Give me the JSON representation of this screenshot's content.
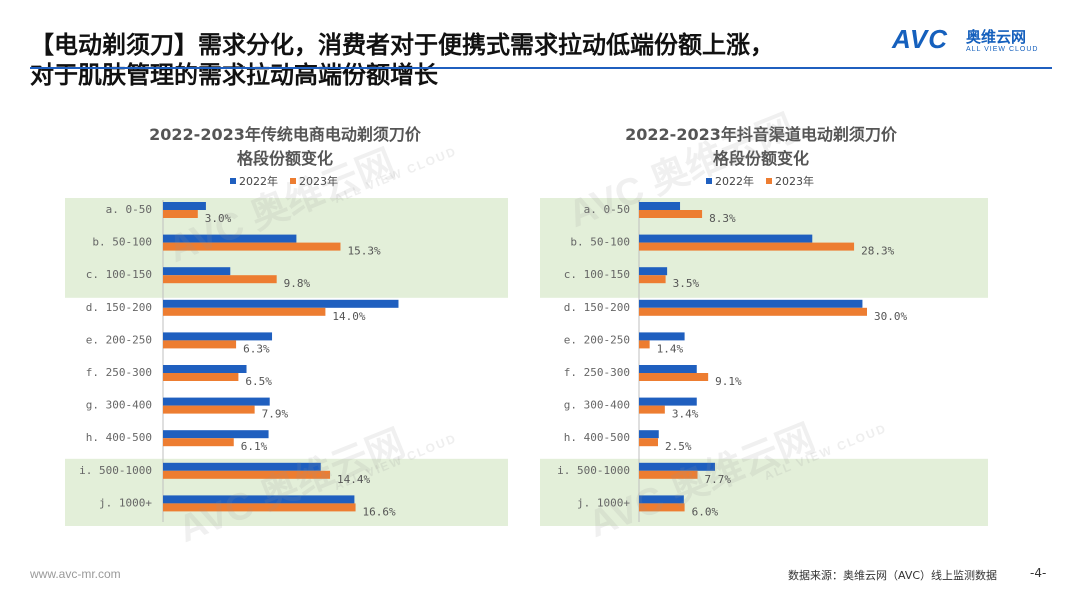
{
  "header": {
    "line1": "【电动剃须刀】需求分化，消费者对于便携式需求拉动低端份额上涨，",
    "line2": "对于肌肤管理的需求拉动高端份额增长"
  },
  "logo": {
    "brand": "AVC",
    "cn": "奥维云网",
    "en": "ALL VIEW CLOUD",
    "color": "#1560bd"
  },
  "watermark": {
    "main": "AVC 奥维云网",
    "sub": "ALL VIEW CLOUD"
  },
  "colors": {
    "series2022": "#1f5fbf",
    "series2023": "#ed7d31",
    "highlight": "#e3efd9",
    "rule": "#1f5fbf"
  },
  "chart_data": [
    {
      "type": "bar",
      "orientation": "horizontal",
      "title": "2022-2023年传统电商电动剃须刀价格段份额变化",
      "title_lines": [
        "2022-2023年传统电商电动剃须刀价",
        "格段份额变化"
      ],
      "categories": [
        "a. 0-50",
        "b. 50-100",
        "c. 100-150",
        "d. 150-200",
        "e. 200-250",
        "f. 250-300",
        "g. 300-400",
        "h. 400-500",
        "i. 500-1000",
        "j. 1000+"
      ],
      "series": [
        {
          "name": "2022年",
          "values": [
            3.7,
            11.5,
            5.8,
            20.3,
            9.4,
            7.2,
            9.2,
            9.1,
            13.6,
            16.5
          ]
        },
        {
          "name": "2023年",
          "values": [
            3.0,
            15.3,
            9.8,
            14.0,
            6.3,
            6.5,
            7.9,
            6.1,
            14.4,
            16.6
          ]
        }
      ],
      "data_labels": [
        "3.0%",
        "15.3%",
        "9.8%",
        "14.0%",
        "6.3%",
        "6.5%",
        "7.9%",
        "6.1%",
        "14.4%",
        "16.6%"
      ],
      "highlight_groups": [
        [
          0,
          2
        ],
        [
          8,
          9
        ]
      ],
      "legend": "top-center"
    },
    {
      "type": "bar",
      "orientation": "horizontal",
      "title": "2022-2023年抖音渠道电动剃须刀价格段份额变化",
      "title_lines": [
        "2022-2023年抖音渠道电动剃须刀价",
        "格段份额变化"
      ],
      "categories": [
        "a. 0-50",
        "b. 50-100",
        "c. 100-150",
        "d. 150-200",
        "e. 200-250",
        "f. 250-300",
        "g. 300-400",
        "h. 400-500",
        "i. 500-1000",
        "j. 1000+"
      ],
      "series": [
        {
          "name": "2022年",
          "values": [
            5.4,
            22.8,
            3.7,
            29.4,
            6.0,
            7.6,
            7.6,
            2.6,
            10.0,
            5.9
          ]
        },
        {
          "name": "2023年",
          "values": [
            8.3,
            28.3,
            3.5,
            30.0,
            1.4,
            9.1,
            3.4,
            2.5,
            7.7,
            6.0
          ]
        }
      ],
      "data_labels": [
        "8.3%",
        "28.3%",
        "3.5%",
        "30.0%",
        "1.4%",
        "9.1%",
        "3.4%",
        "2.5%",
        "7.7%",
        "6.0%"
      ],
      "highlight_groups": [
        [
          0,
          2
        ],
        [
          8,
          9
        ]
      ],
      "legend": "top-center"
    }
  ],
  "footer": {
    "website": "www.avc-mr.com",
    "source": "数据来源：奥维云网（AVC）线上监测数据",
    "page": "-4-"
  }
}
